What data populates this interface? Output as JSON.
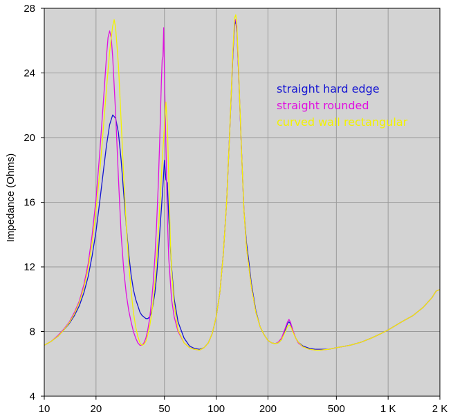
{
  "chart_data": {
    "type": "line",
    "title": "",
    "xlabel": "",
    "ylabel": "Impedance (Ohms)",
    "x_scale": "log",
    "xlim": [
      10,
      2000
    ],
    "ylim": [
      4,
      28
    ],
    "grid": true,
    "plot_background": "#d3d3d3",
    "grid_color": "#9a9a9a",
    "legend_position": "top-right",
    "x_ticks": [
      {
        "value": 10,
        "label": "10"
      },
      {
        "value": 20,
        "label": "20"
      },
      {
        "value": 50,
        "label": "50"
      },
      {
        "value": 100,
        "label": "100"
      },
      {
        "value": 200,
        "label": "200"
      },
      {
        "value": 500,
        "label": "500"
      },
      {
        "value": 1000,
        "label": "1 K"
      },
      {
        "value": 2000,
        "label": "2 K"
      }
    ],
    "y_ticks": [
      {
        "value": 4,
        "label": "4"
      },
      {
        "value": 8,
        "label": "8"
      },
      {
        "value": 12,
        "label": "12"
      },
      {
        "value": 16,
        "label": "16"
      },
      {
        "value": 20,
        "label": "20"
      },
      {
        "value": 24,
        "label": "24"
      },
      {
        "value": 28,
        "label": "28"
      }
    ],
    "series": [
      {
        "name": "straight hard edge",
        "color": "#1414d2",
        "points": [
          [
            10,
            7.15
          ],
          [
            11,
            7.4
          ],
          [
            12,
            7.7
          ],
          [
            13,
            8.1
          ],
          [
            14,
            8.5
          ],
          [
            15,
            9.0
          ],
          [
            16,
            9.6
          ],
          [
            17,
            10.4
          ],
          [
            18,
            11.4
          ],
          [
            19,
            12.7
          ],
          [
            20,
            14.2
          ],
          [
            21,
            16.0
          ],
          [
            22,
            17.8
          ],
          [
            23,
            19.5
          ],
          [
            24,
            20.8
          ],
          [
            25,
            21.4
          ],
          [
            26,
            21.2
          ],
          [
            27,
            20.3
          ],
          [
            28,
            18.6
          ],
          [
            29,
            16.5
          ],
          [
            30,
            14.5
          ],
          [
            31,
            12.8
          ],
          [
            32,
            11.5
          ],
          [
            33,
            10.6
          ],
          [
            34,
            10.0
          ],
          [
            35,
            9.6
          ],
          [
            36,
            9.2
          ],
          [
            37,
            9.0
          ],
          [
            38,
            8.9
          ],
          [
            39,
            8.8
          ],
          [
            40,
            8.8
          ],
          [
            41,
            8.9
          ],
          [
            42,
            9.2
          ],
          [
            43,
            9.7
          ],
          [
            44,
            10.4
          ],
          [
            45,
            11.4
          ],
          [
            46,
            12.7
          ],
          [
            47,
            14.2
          ],
          [
            48,
            15.6
          ],
          [
            49,
            17.0
          ],
          [
            50,
            18.6
          ],
          [
            51,
            17.4
          ],
          [
            52,
            17.2
          ],
          [
            53,
            15.0
          ],
          [
            55,
            12.0
          ],
          [
            57,
            10.0
          ],
          [
            60,
            8.6
          ],
          [
            65,
            7.6
          ],
          [
            70,
            7.1
          ],
          [
            75,
            6.95
          ],
          [
            80,
            6.9
          ],
          [
            85,
            7.0
          ],
          [
            90,
            7.3
          ],
          [
            95,
            7.9
          ],
          [
            100,
            8.9
          ],
          [
            105,
            10.4
          ],
          [
            110,
            12.8
          ],
          [
            115,
            16.0
          ],
          [
            120,
            20.5
          ],
          [
            125,
            25.0
          ],
          [
            128,
            27.0
          ],
          [
            130,
            27.2
          ],
          [
            132,
            26.5
          ],
          [
            135,
            24.0
          ],
          [
            140,
            19.5
          ],
          [
            145,
            15.5
          ],
          [
            150,
            13.5
          ],
          [
            155,
            12.3
          ],
          [
            160,
            11.0
          ],
          [
            170,
            9.3
          ],
          [
            180,
            8.3
          ],
          [
            190,
            7.8
          ],
          [
            200,
            7.45
          ],
          [
            210,
            7.3
          ],
          [
            220,
            7.25
          ],
          [
            230,
            7.3
          ],
          [
            240,
            7.5
          ],
          [
            250,
            8.0
          ],
          [
            260,
            8.5
          ],
          [
            265,
            8.6
          ],
          [
            270,
            8.5
          ],
          [
            280,
            8.0
          ],
          [
            290,
            7.6
          ],
          [
            300,
            7.35
          ],
          [
            320,
            7.1
          ],
          [
            350,
            6.95
          ],
          [
            380,
            6.9
          ],
          [
            400,
            6.9
          ],
          [
            450,
            6.9
          ],
          [
            500,
            7.0
          ],
          [
            600,
            7.15
          ],
          [
            700,
            7.35
          ],
          [
            800,
            7.6
          ],
          [
            900,
            7.85
          ],
          [
            1000,
            8.1
          ],
          [
            1200,
            8.6
          ],
          [
            1400,
            9.0
          ],
          [
            1600,
            9.5
          ],
          [
            1800,
            10.1
          ],
          [
            1900,
            10.5
          ],
          [
            2000,
            10.6
          ]
        ]
      },
      {
        "name": "straight rounded",
        "color": "#e010e0",
        "points": [
          [
            10,
            7.15
          ],
          [
            11,
            7.4
          ],
          [
            12,
            7.75
          ],
          [
            13,
            8.15
          ],
          [
            14,
            8.6
          ],
          [
            15,
            9.2
          ],
          [
            16,
            9.9
          ],
          [
            17,
            10.9
          ],
          [
            18,
            12.2
          ],
          [
            19,
            14.0
          ],
          [
            20,
            16.2
          ],
          [
            21,
            19.0
          ],
          [
            22,
            22.0
          ],
          [
            23,
            25.0
          ],
          [
            23.5,
            26.2
          ],
          [
            24,
            26.6
          ],
          [
            24.5,
            26.2
          ],
          [
            25,
            25.0
          ],
          [
            26,
            21.5
          ],
          [
            27,
            17.5
          ],
          [
            28,
            14.0
          ],
          [
            29,
            11.8
          ],
          [
            30,
            10.3
          ],
          [
            31,
            9.3
          ],
          [
            32,
            8.6
          ],
          [
            33,
            8.0
          ],
          [
            34,
            7.6
          ],
          [
            35,
            7.3
          ],
          [
            36,
            7.15
          ],
          [
            37,
            7.15
          ],
          [
            38,
            7.3
          ],
          [
            39,
            7.6
          ],
          [
            40,
            8.1
          ],
          [
            41,
            8.8
          ],
          [
            42,
            9.8
          ],
          [
            43,
            11.0
          ],
          [
            44,
            12.6
          ],
          [
            45,
            14.6
          ],
          [
            46,
            17.0
          ],
          [
            47,
            20.0
          ],
          [
            48,
            23.5
          ],
          [
            48.5,
            24.8
          ],
          [
            49,
            25.0
          ],
          [
            49.5,
            26.8
          ],
          [
            50,
            24.0
          ],
          [
            51,
            19.5
          ],
          [
            52,
            15.0
          ],
          [
            53,
            12.5
          ],
          [
            55,
            10.0
          ],
          [
            57,
            8.9
          ],
          [
            60,
            8.0
          ],
          [
            65,
            7.3
          ],
          [
            70,
            7.0
          ],
          [
            75,
            6.9
          ],
          [
            80,
            6.85
          ],
          [
            85,
            7.0
          ],
          [
            90,
            7.3
          ],
          [
            95,
            7.9
          ],
          [
            100,
            8.9
          ],
          [
            105,
            10.4
          ],
          [
            110,
            12.8
          ],
          [
            115,
            16.0
          ],
          [
            120,
            20.5
          ],
          [
            125,
            25.2
          ],
          [
            128,
            27.2
          ],
          [
            130,
            27.3
          ],
          [
            132,
            26.6
          ],
          [
            135,
            24.0
          ],
          [
            140,
            19.5
          ],
          [
            145,
            15.5
          ],
          [
            150,
            13.2
          ],
          [
            160,
            10.8
          ],
          [
            170,
            9.2
          ],
          [
            180,
            8.3
          ],
          [
            190,
            7.8
          ],
          [
            200,
            7.45
          ],
          [
            210,
            7.3
          ],
          [
            220,
            7.25
          ],
          [
            230,
            7.35
          ],
          [
            240,
            7.6
          ],
          [
            250,
            8.1
          ],
          [
            260,
            8.6
          ],
          [
            265,
            8.75
          ],
          [
            270,
            8.6
          ],
          [
            280,
            8.05
          ],
          [
            290,
            7.6
          ],
          [
            300,
            7.3
          ],
          [
            320,
            7.05
          ],
          [
            350,
            6.9
          ],
          [
            380,
            6.85
          ],
          [
            400,
            6.85
          ],
          [
            450,
            6.9
          ],
          [
            500,
            7.0
          ],
          [
            600,
            7.15
          ],
          [
            700,
            7.35
          ],
          [
            800,
            7.6
          ],
          [
            900,
            7.85
          ],
          [
            1000,
            8.1
          ],
          [
            1200,
            8.6
          ],
          [
            1400,
            9.0
          ],
          [
            1600,
            9.5
          ],
          [
            1800,
            10.1
          ],
          [
            1900,
            10.5
          ],
          [
            2000,
            10.6
          ]
        ]
      },
      {
        "name": "curved wall rectangular",
        "color": "#f2f200",
        "points": [
          [
            10,
            7.15
          ],
          [
            11,
            7.4
          ],
          [
            12,
            7.7
          ],
          [
            13,
            8.1
          ],
          [
            14,
            8.55
          ],
          [
            15,
            9.1
          ],
          [
            16,
            9.8
          ],
          [
            17,
            10.7
          ],
          [
            18,
            11.9
          ],
          [
            19,
            13.5
          ],
          [
            20,
            15.5
          ],
          [
            21,
            17.8
          ],
          [
            22,
            20.4
          ],
          [
            23,
            23.0
          ],
          [
            24,
            25.3
          ],
          [
            25,
            26.9
          ],
          [
            25.5,
            27.3
          ],
          [
            26,
            26.8
          ],
          [
            27,
            24.5
          ],
          [
            28,
            21.0
          ],
          [
            29,
            17.5
          ],
          [
            30,
            14.5
          ],
          [
            31,
            12.2
          ],
          [
            32,
            10.5
          ],
          [
            33,
            9.2
          ],
          [
            34,
            8.3
          ],
          [
            35,
            7.7
          ],
          [
            36,
            7.3
          ],
          [
            37,
            7.15
          ],
          [
            38,
            7.2
          ],
          [
            39,
            7.4
          ],
          [
            40,
            7.8
          ],
          [
            41,
            8.3
          ],
          [
            42,
            9.0
          ],
          [
            43,
            9.9
          ],
          [
            44,
            11.0
          ],
          [
            45,
            12.4
          ],
          [
            46,
            14.0
          ],
          [
            47,
            15.8
          ],
          [
            48,
            17.6
          ],
          [
            49,
            19.3
          ],
          [
            50,
            20.7
          ],
          [
            51,
            22.2
          ],
          [
            52,
            20.8
          ],
          [
            53,
            17.5
          ],
          [
            54,
            14.0
          ],
          [
            55,
            11.8
          ],
          [
            57,
            9.6
          ],
          [
            60,
            8.1
          ],
          [
            65,
            7.3
          ],
          [
            70,
            7.0
          ],
          [
            75,
            6.9
          ],
          [
            80,
            6.85
          ],
          [
            85,
            7.0
          ],
          [
            90,
            7.3
          ],
          [
            95,
            7.9
          ],
          [
            100,
            8.9
          ],
          [
            105,
            10.4
          ],
          [
            110,
            12.8
          ],
          [
            115,
            16.0
          ],
          [
            120,
            20.5
          ],
          [
            125,
            25.3
          ],
          [
            128,
            27.4
          ],
          [
            130,
            27.6
          ],
          [
            132,
            26.9
          ],
          [
            135,
            24.2
          ],
          [
            140,
            19.5
          ],
          [
            145,
            15.5
          ],
          [
            150,
            13.2
          ],
          [
            160,
            10.8
          ],
          [
            170,
            9.2
          ],
          [
            180,
            8.3
          ],
          [
            190,
            7.8
          ],
          [
            200,
            7.45
          ],
          [
            210,
            7.3
          ],
          [
            220,
            7.25
          ],
          [
            230,
            7.3
          ],
          [
            240,
            7.5
          ],
          [
            250,
            7.9
          ],
          [
            260,
            8.3
          ],
          [
            265,
            8.4
          ],
          [
            270,
            8.35
          ],
          [
            280,
            7.95
          ],
          [
            290,
            7.6
          ],
          [
            300,
            7.35
          ],
          [
            320,
            7.05
          ],
          [
            350,
            6.9
          ],
          [
            380,
            6.85
          ],
          [
            400,
            6.85
          ],
          [
            450,
            6.9
          ],
          [
            500,
            7.0
          ],
          [
            600,
            7.15
          ],
          [
            700,
            7.35
          ],
          [
            800,
            7.6
          ],
          [
            900,
            7.85
          ],
          [
            1000,
            8.1
          ],
          [
            1200,
            8.6
          ],
          [
            1400,
            9.0
          ],
          [
            1600,
            9.5
          ],
          [
            1800,
            10.1
          ],
          [
            1900,
            10.5
          ],
          [
            2000,
            10.6
          ]
        ]
      }
    ]
  }
}
